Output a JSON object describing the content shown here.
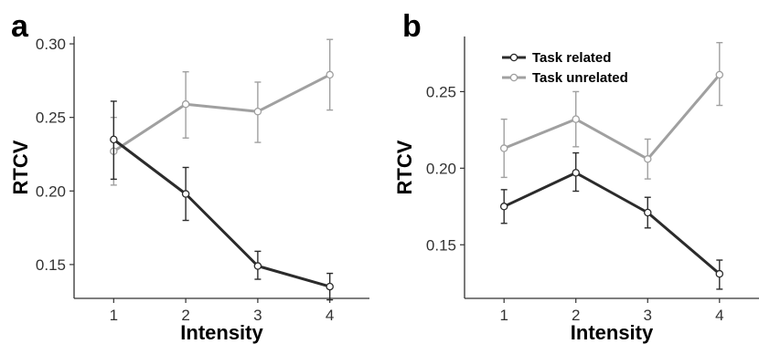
{
  "chart_data": [
    {
      "type": "line",
      "panel_label": "a",
      "xlabel": "Intensity",
      "ylabel": "RTCV",
      "x": [
        1,
        2,
        3,
        4
      ],
      "xlim": [
        0.45,
        4.55
      ],
      "ylim": [
        0.127,
        0.305
      ],
      "yticks": [
        0.15,
        0.2,
        0.25,
        0.3
      ],
      "ytick_labels": [
        "0.15",
        "0.20",
        "0.25",
        "0.30"
      ],
      "grid": false,
      "series": [
        {
          "name": "Task related",
          "color": "#2b2b2b",
          "values": [
            0.235,
            0.198,
            0.149,
            0.135
          ],
          "err_low": [
            0.208,
            0.18,
            0.14,
            0.126
          ],
          "err_high": [
            0.261,
            0.216,
            0.159,
            0.144
          ]
        },
        {
          "name": "Task unrelated",
          "color": "#a0a0a0",
          "values": [
            0.227,
            0.259,
            0.254,
            0.279
          ],
          "err_low": [
            0.204,
            0.236,
            0.233,
            0.255
          ],
          "err_high": [
            0.25,
            0.281,
            0.274,
            0.303
          ]
        }
      ]
    },
    {
      "type": "line",
      "panel_label": "b",
      "xlabel": "Intensity",
      "ylabel": "RTCV",
      "x": [
        1,
        2,
        3,
        4
      ],
      "xlim": [
        0.45,
        4.55
      ],
      "ylim": [
        0.115,
        0.286
      ],
      "yticks": [
        0.15,
        0.2,
        0.25
      ],
      "ytick_labels": [
        "0.15",
        "0.20",
        "0.25"
      ],
      "grid": false,
      "legend": {
        "placement": "top-left",
        "entries": [
          {
            "label": "Task related",
            "color": "#2b2b2b"
          },
          {
            "label": "Task unrelated",
            "color": "#a0a0a0"
          }
        ]
      },
      "series": [
        {
          "name": "Task related",
          "color": "#2b2b2b",
          "values": [
            0.175,
            0.197,
            0.171,
            0.131
          ],
          "err_low": [
            0.164,
            0.185,
            0.161,
            0.121
          ],
          "err_high": [
            0.186,
            0.21,
            0.181,
            0.14
          ]
        },
        {
          "name": "Task unrelated",
          "color": "#a0a0a0",
          "values": [
            0.213,
            0.232,
            0.206,
            0.261
          ],
          "err_low": [
            0.194,
            0.214,
            0.193,
            0.241
          ],
          "err_high": [
            0.232,
            0.25,
            0.219,
            0.282
          ]
        }
      ]
    }
  ]
}
